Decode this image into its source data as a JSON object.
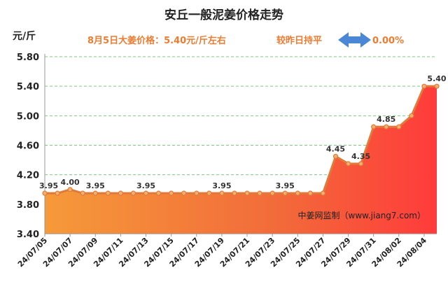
{
  "header": {
    "title": "安丘一般泥姜价格走势",
    "unit": "元/斤",
    "price_note": "8月5日大姜价格：5.40元/斤左右",
    "compare_label": "较昨日持平",
    "compare_icon": "left-right-arrow-icon",
    "compare_value": "0.00%",
    "accent_color": "#ee7b30",
    "arrow_color": "#4a88d6"
  },
  "watermark": "中姜网监制（www.jiang7.com）",
  "chart_data": {
    "type": "area",
    "title": "安丘一般泥姜价格走势",
    "ylabel": "元/斤",
    "xlabel": "",
    "ylim": [
      3.4,
      5.8
    ],
    "yticks": [
      "3.40",
      "3.80",
      "4.20",
      "4.60",
      "5.00",
      "5.40",
      "5.80"
    ],
    "grid": true,
    "x": [
      "24/07/05",
      "24/07/06",
      "24/07/07",
      "24/07/08",
      "24/07/09",
      "24/07/10",
      "24/07/11",
      "24/07/12",
      "24/07/13",
      "24/07/14",
      "24/07/15",
      "24/07/16",
      "24/07/17",
      "24/07/18",
      "24/07/19",
      "24/07/20",
      "24/07/21",
      "24/07/22",
      "24/07/23",
      "24/07/24",
      "24/07/25",
      "24/07/26",
      "24/07/27",
      "24/07/28",
      "24/07/29",
      "24/07/30",
      "24/07/31",
      "24/08/01",
      "24/08/02",
      "24/08/03",
      "24/08/04",
      "24/08/05"
    ],
    "x_tick_labels": [
      "24/07/05",
      "24/07/07",
      "24/07/09",
      "24/07/11",
      "24/07/13",
      "24/07/15",
      "24/07/17",
      "24/07/19",
      "24/07/21",
      "24/07/23",
      "24/07/25",
      "24/07/27",
      "24/07/29",
      "24/07/31",
      "24/08/02",
      "24/08/04"
    ],
    "values": [
      3.95,
      3.95,
      4.0,
      3.95,
      3.95,
      3.95,
      3.95,
      3.95,
      3.95,
      3.95,
      3.95,
      3.95,
      3.95,
      3.95,
      3.95,
      3.95,
      3.95,
      3.95,
      3.95,
      3.95,
      3.95,
      3.95,
      3.95,
      4.45,
      4.35,
      4.35,
      4.85,
      4.85,
      4.85,
      5.0,
      5.4,
      5.4
    ],
    "data_labels": [
      {
        "index": 0,
        "text": "3.95"
      },
      {
        "index": 2,
        "text": "4.00"
      },
      {
        "index": 4,
        "text": "3.95"
      },
      {
        "index": 8,
        "text": "3.95"
      },
      {
        "index": 14,
        "text": "3.95"
      },
      {
        "index": 19,
        "text": "3.95"
      },
      {
        "index": 23,
        "text": "4.45"
      },
      {
        "index": 25,
        "text": "4.35"
      },
      {
        "index": 27,
        "text": "4.85"
      },
      {
        "index": 31,
        "text": "5.40"
      }
    ],
    "colors": {
      "line": "#e07a3a",
      "marker_fill": "#f0b070",
      "area_top": "#ff3b3b",
      "area_bottom": "#f59a3a",
      "grid": "#7fc97f",
      "axis": "#999999"
    }
  }
}
